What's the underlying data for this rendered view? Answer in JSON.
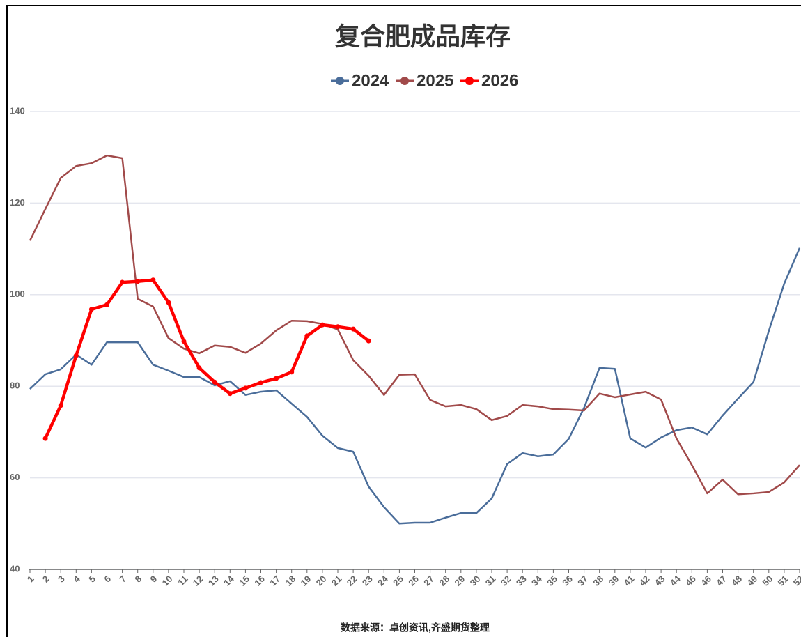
{
  "chart_data": {
    "type": "line",
    "title": "复合肥成品库存",
    "source": "数据来源：卓创资讯,齐盛期货整理",
    "categories": [
      "1",
      "2",
      "3",
      "4",
      "5",
      "6",
      "7",
      "8",
      "9",
      "10",
      "11",
      "12",
      "13",
      "14",
      "15",
      "16",
      "17",
      "18",
      "19",
      "20",
      "21",
      "22",
      "23",
      "24",
      "25",
      "26",
      "27",
      "28",
      "29",
      "30",
      "31",
      "32",
      "33",
      "34",
      "35",
      "36",
      "37",
      "38",
      "39",
      "41",
      "42",
      "43",
      "44",
      "45",
      "46",
      "47",
      "48",
      "49",
      "50",
      "51",
      "52"
    ],
    "series": [
      {
        "name": "2024",
        "color": "#4a6d9a",
        "marker": false,
        "values": [
          79.4,
          82.6,
          83.7,
          86.9,
          84.7,
          89.6,
          89.6,
          89.6,
          84.7,
          83.4,
          82.0,
          82.0,
          80.2,
          81.1,
          78.1,
          78.8,
          79.1,
          76.2,
          73.3,
          69.2,
          66.5,
          65.7,
          58.1,
          53.6,
          50.0,
          50.2,
          50.2,
          51.3,
          52.3,
          52.3,
          55.5,
          63.0,
          65.4,
          64.7,
          65.1,
          68.5,
          75.3,
          84.0,
          83.8,
          68.6,
          66.6,
          68.8,
          70.4,
          71.0,
          69.5,
          73.6,
          77.3,
          80.9,
          92.1,
          102.4,
          110.2
        ]
      },
      {
        "name": "2025",
        "color": "#a14a4a",
        "marker": false,
        "values": [
          111.8,
          118.7,
          125.5,
          128.1,
          128.7,
          130.4,
          129.8,
          99.1,
          97.4,
          90.5,
          88.2,
          87.2,
          88.9,
          88.6,
          87.3,
          89.3,
          92.2,
          94.3,
          94.2,
          93.6,
          92.4,
          85.7,
          82.3,
          78.1,
          82.5,
          82.6,
          77.0,
          75.6,
          75.9,
          75.0,
          72.6,
          73.5,
          75.9,
          75.6,
          75.0,
          74.9,
          74.7,
          78.4,
          77.6,
          78.2,
          78.8,
          77.1,
          68.6,
          62.8,
          56.6,
          59.6,
          56.4,
          56.6,
          56.9,
          59.0,
          62.8
        ]
      },
      {
        "name": "2026",
        "color": "#ff0000",
        "marker": true,
        "values": [
          null,
          68.6,
          75.8,
          86.7,
          96.8,
          97.8,
          102.7,
          102.9,
          103.2,
          98.3,
          89.8,
          84.0,
          80.9,
          78.4,
          79.6,
          80.8,
          81.7,
          83.1,
          91.0,
          93.4,
          93.0,
          92.5,
          89.9,
          null,
          null,
          null,
          null,
          null,
          null,
          null,
          null,
          null,
          null,
          null,
          null,
          null,
          null,
          null,
          null,
          null,
          null,
          null,
          null,
          null,
          null,
          null,
          null,
          null,
          null,
          null,
          null
        ]
      }
    ],
    "ylim": [
      40,
      140
    ],
    "yticks": [
      40,
      60,
      80,
      100,
      120,
      140
    ],
    "grid": true
  }
}
